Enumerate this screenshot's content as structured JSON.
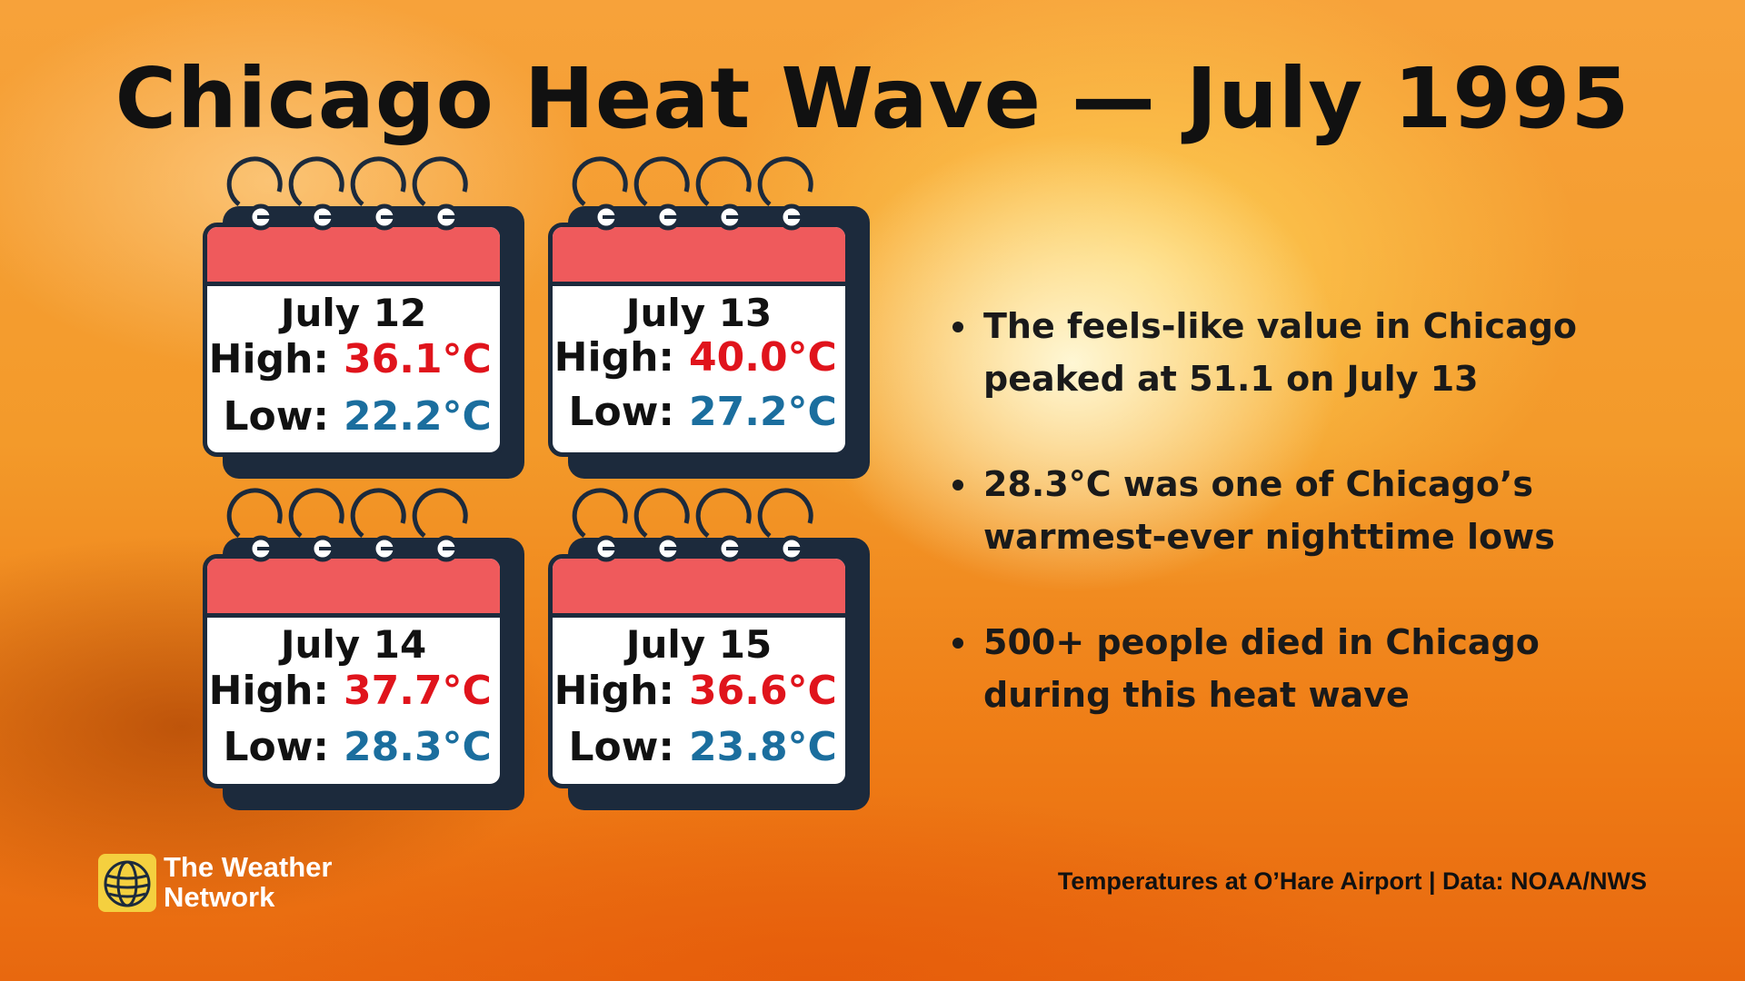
{
  "title": "Chicago Heat Wave — July 1995",
  "cards": [
    {
      "date": "July 12",
      "high_label": "High:",
      "high": "36.1°C",
      "low_label": "Low:",
      "low": "22.2°C"
    },
    {
      "date": "July 13",
      "high_label": "High:",
      "high": "40.0°C",
      "low_label": "Low:",
      "low": "27.2°C"
    },
    {
      "date": "July 14",
      "high_label": "High:",
      "high": "37.7°C",
      "low_label": "Low:",
      "low": "28.3°C"
    },
    {
      "date": "July 15",
      "high_label": "High:",
      "high": "36.6°C",
      "low_label": "Low:",
      "low": "23.8°C"
    }
  ],
  "bullets": [
    {
      "line1": "The feels-like value in Chicago",
      "line2": "peaked at 51.1 on July 13"
    },
    {
      "line1": "28.3°C was one of Chicago’s",
      "line2": "warmest-ever nighttime lows"
    },
    {
      "line1": "500+ people died in Chicago",
      "line2": "during this heat wave"
    }
  ],
  "logo": {
    "line1": "The Weather",
    "line2": "Network",
    "icon": "globe-icon"
  },
  "source": "Temperatures at O’Hare Airport | Data: NOAA/NWS",
  "colors": {
    "high": "#e0141c",
    "low": "#1b6e9e",
    "calendar_header": "#ef5a5c",
    "calendar_outline": "#1c2a3c"
  }
}
